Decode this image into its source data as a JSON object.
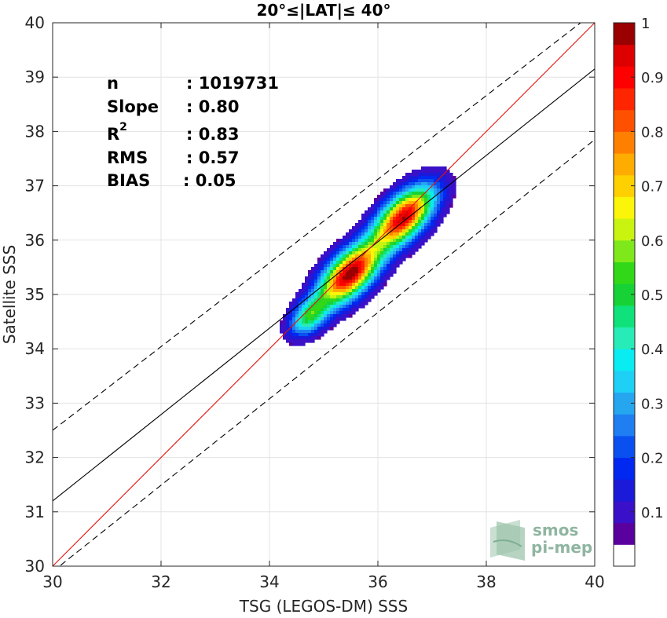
{
  "chart_data": {
    "type": "scatter",
    "subtype": "density-contour",
    "title": "20°≤|LAT|≤ 40°",
    "xlabel": "TSG (LEGOS-DM) SSS",
    "ylabel": "Satellite SSS",
    "xlim": [
      30,
      40
    ],
    "ylim": [
      30,
      40
    ],
    "xticks": [
      "30",
      "32",
      "34",
      "36",
      "38",
      "40"
    ],
    "yticks": [
      "30",
      "31",
      "32",
      "33",
      "34",
      "35",
      "36",
      "37",
      "38",
      "39",
      "40"
    ],
    "grid": true,
    "stats": [
      {
        "label": "n",
        "value": ": 1019731"
      },
      {
        "label": "Slope",
        "value": ": 0.80"
      },
      {
        "label": "R",
        "sup": "2",
        "value": ": 0.83"
      },
      {
        "label": "RMS",
        "value": ": 0.57"
      },
      {
        "label": "BIAS",
        "value": ": 0.05"
      }
    ],
    "lines": {
      "one_to_one": {
        "x": [
          30,
          40
        ],
        "y": [
          30,
          40
        ],
        "color": "#e8120c"
      },
      "regression": {
        "x": [
          30,
          40
        ],
        "y": [
          31.2,
          39.15
        ],
        "color": "#000000"
      },
      "upper_bound": {
        "x": [
          30,
          40
        ],
        "y": [
          32.5,
          40.2
        ],
        "dash": true
      },
      "lower_bound": {
        "x": [
          30,
          40
        ],
        "y": [
          29.9,
          37.85
        ],
        "dash": true
      }
    },
    "density_peaks": [
      {
        "x": 35.45,
        "y": 35.4,
        "value": 1.0
      },
      {
        "x": 36.45,
        "y": 36.45,
        "value": 0.95
      },
      {
        "x": 34.7,
        "y": 34.62,
        "value": 0.45
      }
    ],
    "colorbar": {
      "ticks": [
        "0.1",
        "0.2",
        "0.3",
        "0.4",
        "0.5",
        "0.6",
        "0.7",
        "0.8",
        "0.9",
        "1"
      ],
      "range": [
        0,
        1
      ],
      "colors": [
        "#ffffff",
        "#5a009e",
        "#3a10c8",
        "#1a1ad8",
        "#0028f0",
        "#0a50f0",
        "#1f7ef2",
        "#27a6f0",
        "#1ed0f5",
        "#08ecf2",
        "#28ecb8",
        "#0fe27a",
        "#16d236",
        "#30d818",
        "#7ee81a",
        "#c8f410",
        "#fbf50a",
        "#ffd000",
        "#ffac00",
        "#ff8000",
        "#ff5000",
        "#ff2500",
        "#ff0000",
        "#de0000",
        "#9a0000"
      ]
    }
  },
  "logo": {
    "line1": "smos",
    "line2": "pi-mep"
  }
}
